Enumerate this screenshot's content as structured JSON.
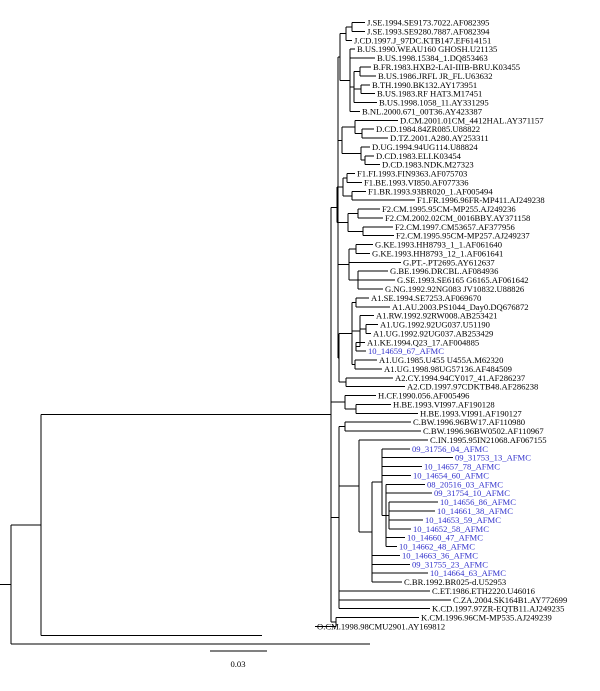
{
  "colors": {
    "line": "#000000",
    "reference_text": "#000000",
    "study_text": "#3333cc"
  },
  "scale_bar": {
    "label": "0.03"
  },
  "leaves": [
    {
      "label": "J.SE.1994.SE9173.7022.AF082395",
      "study": false
    },
    {
      "label": "J.SE.1993.SE9280.7887.AF082394",
      "study": false
    },
    {
      "label": "J.CD.1997.J_97DC.KTB147.EF614151",
      "study": false
    },
    {
      "label": "B.US.1990.WEAU160 GHOSH.U21135",
      "study": false
    },
    {
      "label": "B.US.1998.15384_1.DQ853463",
      "study": false
    },
    {
      "label": "B.FR.1983.HXB2-LAI-IIIB-BRU.K03455",
      "study": false
    },
    {
      "label": "B.US.1986.JRFL JR_FL.U63632",
      "study": false
    },
    {
      "label": "B.TH.1990.BK132.AY173951",
      "study": false
    },
    {
      "label": "B.US.1983.RF HAT3.M17451",
      "study": false
    },
    {
      "label": "B.US.1998.1058_11.AY331295",
      "study": false
    },
    {
      "label": "B.NL.2000.671_00T36.AY423387",
      "study": false
    },
    {
      "label": "D.CM.2001.01CM_4412HAL.AY371157",
      "study": false
    },
    {
      "label": "D.CD.1984.84ZR085.U88822",
      "study": false
    },
    {
      "label": "D.TZ.2001.A280.AY253311",
      "study": false
    },
    {
      "label": "D.UG.1994.94UG114.U88824",
      "study": false
    },
    {
      "label": "D.CD.1983.ELI.K03454",
      "study": false
    },
    {
      "label": "D.CD.1983.NDK.M27323",
      "study": false
    },
    {
      "label": "F1.FI.1993.FIN9363.AF075703",
      "study": false
    },
    {
      "label": "F1.BE.1993.VI850.AF077336",
      "study": false
    },
    {
      "label": "F1.BR.1993.93BR020_1.AF005494",
      "study": false
    },
    {
      "label": "F1.FR.1996.96FR-MP411.AJ249238",
      "study": false
    },
    {
      "label": "F2.CM.1995.95CM-MP255.AJ249236",
      "study": false
    },
    {
      "label": "F2.CM.2002.02CM_0016BBY.AY371158",
      "study": false
    },
    {
      "label": "F2.CM.1997.CM53657.AF377956",
      "study": false
    },
    {
      "label": "F2.CM.1995.95CM-MP257.AJ249237",
      "study": false
    },
    {
      "label": "G.KE.1993.HH8793_1_1.AF061640",
      "study": false
    },
    {
      "label": "G.KE.1993.HH8793_12_1.AF061641",
      "study": false
    },
    {
      "label": "G.PT.-.PT2695.AY612637",
      "study": false
    },
    {
      "label": "G.BE.1996.DRCBL.AF084936",
      "study": false
    },
    {
      "label": "G.SE.1993.SE6165 G6165.AF061642",
      "study": false
    },
    {
      "label": "G.NG.1992.92NG083 JV10832.U88826",
      "study": false
    },
    {
      "label": "A1.SE.1994.SE7253.AF069670",
      "study": false
    },
    {
      "label": "A1.AU.2003.PS1044_Day0.DQ676872",
      "study": false
    },
    {
      "label": "A1.RW.1992.92RW008.AB253421",
      "study": false
    },
    {
      "label": "A1.UG.1992.92UG037.U51190",
      "study": false
    },
    {
      "label": "A1.UG.1992.92UG037.AB253429",
      "study": false
    },
    {
      "label": "A1.KE.1994.Q23_17.AF004885",
      "study": false
    },
    {
      "label": "10_14659_67_AFMC",
      "study": true
    },
    {
      "label": "A1.UG.1985.U455 U455A.M62320",
      "study": false
    },
    {
      "label": "A1.UG.1998.98UG57136.AF484509",
      "study": false
    },
    {
      "label": "A2.CY.1994.94CY017_41.AF286237",
      "study": false
    },
    {
      "label": "A2.CD.1997.97CDKTB48.AF286238",
      "study": false
    },
    {
      "label": "H.CF.1990.056.AF005496",
      "study": false
    },
    {
      "label": "H.BE.1993.VI997.AF190128",
      "study": false
    },
    {
      "label": "H.BE.1993.VI991.AF190127",
      "study": false
    },
    {
      "label": "C.BW.1996.96BW17.AF110980",
      "study": false
    },
    {
      "label": "C.BW.1996.96BW0502.AF110967",
      "study": false
    },
    {
      "label": "C.IN.1995.95IN21068.AF067155",
      "study": false
    },
    {
      "label": "09_31756_04_AFMC",
      "study": true
    },
    {
      "label": "09_31753_13_AFMC",
      "study": true
    },
    {
      "label": "10_14657_78_AFMC",
      "study": true
    },
    {
      "label": "10_14654_60_AFMC",
      "study": true
    },
    {
      "label": "08_20516_03_AFMC",
      "study": true
    },
    {
      "label": "09_31754_10_AFMC",
      "study": true
    },
    {
      "label": "10_14656_86_AFMC",
      "study": true
    },
    {
      "label": "10_14661_38_AFMC",
      "study": true
    },
    {
      "label": "10_14653_59_AFMC",
      "study": true
    },
    {
      "label": "10_14652_58_AFMC",
      "study": true
    },
    {
      "label": "10_14660_47_AFMC",
      "study": true
    },
    {
      "label": "10_14662_48_AFMC",
      "study": true
    },
    {
      "label": "10_14663_36_AFMC",
      "study": true
    },
    {
      "label": "09_31755_23_AFMC",
      "study": true
    },
    {
      "label": "10_14664_63_AFMC",
      "study": true
    },
    {
      "label": "C.BR.1992.BR025-d.U52953",
      "study": false
    },
    {
      "label": "C.ET.1986.ETH2220.U46016",
      "study": false
    },
    {
      "label": "C.ZA.2004.SK164B1.AY772699",
      "study": false
    },
    {
      "label": "K.CD.1997.97ZR-EQTB11.AJ249235",
      "study": false
    },
    {
      "label": "K.CM.1996.96CM-MP535.AJ249239",
      "study": false
    },
    {
      "label": "O.CM.1998.98CMU2901.AY169812",
      "study": false
    }
  ]
}
